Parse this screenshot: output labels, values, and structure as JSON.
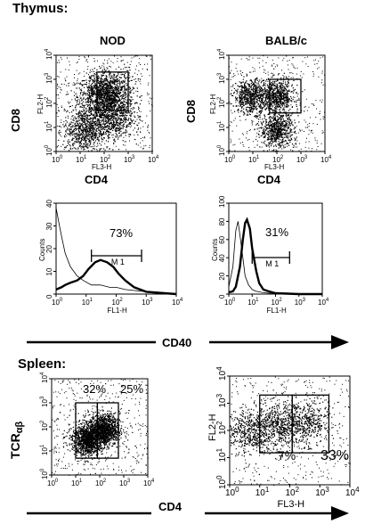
{
  "figure": {
    "thymus_title": "Thymus:",
    "spleen_title": "Spleen:",
    "column_nod": "NOD",
    "column_balbc": "BALB/c",
    "label_cd8": "CD8",
    "label_cd4": "CD4",
    "label_cd40": "CD40",
    "label_tcr_base": "TCR",
    "label_tcr_sub": "αβ",
    "axis_fl2h": "FL2-H",
    "axis_fl3h": "FL3-H",
    "axis_fl1h": "FL1-H",
    "axis_counts": "Counts",
    "gate_m1": "M 1",
    "pct_nod_cd40": "73%",
    "pct_balbc_cd40": "31%",
    "pct_spleen_nod_left": "32%",
    "pct_spleen_nod_right": "25%",
    "pct_spleen_balbc_left": "7%",
    "pct_spleen_balbc_right": "33%",
    "log_ticks": [
      "10",
      "10",
      "10",
      "10",
      "10"
    ],
    "log_exponents": [
      "0",
      "1",
      "2",
      "3",
      "4"
    ],
    "hist_left_yticks": [
      "0",
      "10",
      "20",
      "30",
      "40"
    ],
    "hist_right_yticks": [
      "0",
      "20",
      "40",
      "60",
      "80",
      "100"
    ]
  },
  "chart_data": [
    {
      "type": "scatter",
      "panel": "thymus-nod",
      "xlabel": "FL3-H",
      "ylabel": "FL2-H",
      "xlim": [
        1,
        10000
      ],
      "ylim": [
        1,
        10000
      ],
      "xscale": "log",
      "yscale": "log",
      "gate_bbox_data": [
        [
          50,
          50
        ],
        [
          1000,
          2000
        ]
      ],
      "population_centers": [
        [
          60,
          200
        ],
        [
          200,
          300
        ],
        [
          15,
          8
        ],
        [
          200,
          30
        ]
      ]
    },
    {
      "type": "scatter",
      "panel": "thymus-balbc",
      "xlabel": "FL3-H",
      "ylabel": "FL2-H",
      "xlim": [
        1,
        10000
      ],
      "ylim": [
        1,
        10000
      ],
      "xscale": "log",
      "yscale": "log",
      "gate_bbox_data": [
        [
          50,
          40
        ],
        [
          1000,
          1000
        ]
      ],
      "population_centers": [
        [
          100,
          200
        ],
        [
          8,
          200
        ],
        [
          100,
          8
        ]
      ]
    },
    {
      "type": "line",
      "panel": "thymus-nod-cd40",
      "xlabel": "FL1-H",
      "ylabel": "Counts",
      "xlim": [
        1,
        10000
      ],
      "ylim": [
        0,
        40
      ],
      "xscale": "log",
      "gate_label": "M 1",
      "gate_range": [
        15,
        700
      ],
      "gate_percent": "73%",
      "series": [
        {
          "x": [
            1,
            1.5,
            2,
            3,
            5,
            8,
            12,
            20,
            30,
            50,
            80,
            120,
            200,
            400,
            1000,
            10000
          ],
          "y": [
            2,
            3,
            4,
            5,
            6,
            8,
            11,
            14,
            15,
            14,
            12,
            9,
            6,
            3,
            1,
            0
          ]
        },
        {
          "x": [
            1,
            1.3,
            1.6,
            2,
            3,
            5,
            8,
            15,
            30,
            60,
            100,
            200,
            1000,
            10000
          ],
          "y": [
            38,
            30,
            24,
            18,
            12,
            8,
            6,
            4,
            4,
            3,
            3,
            2,
            1,
            0
          ]
        }
      ]
    },
    {
      "type": "line",
      "panel": "thymus-balbc-cd40",
      "xlabel": "FL1-H",
      "ylabel": "Counts",
      "xlim": [
        1,
        10000
      ],
      "ylim": [
        0,
        100
      ],
      "xscale": "log",
      "gate_label": "M 1",
      "gate_range": [
        10,
        400
      ],
      "gate_percent": "31%",
      "series": [
        {
          "x": [
            1,
            1.5,
            2,
            3,
            4,
            5,
            6,
            8,
            10,
            15,
            20,
            30,
            50,
            100,
            1000,
            10000
          ],
          "y": [
            2,
            3,
            8,
            30,
            60,
            78,
            82,
            72,
            50,
            25,
            12,
            5,
            3,
            1,
            0,
            0
          ]
        },
        {
          "x": [
            1,
            1.5,
            2,
            2.5,
            3,
            4,
            5,
            7,
            10,
            15,
            25,
            50,
            100,
            1000,
            10000
          ],
          "y": [
            8,
            30,
            70,
            80,
            65,
            40,
            20,
            10,
            5,
            3,
            2,
            1,
            1,
            0,
            0
          ]
        }
      ]
    },
    {
      "type": "scatter",
      "panel": "spleen-nod",
      "xlabel": "",
      "ylabel": "",
      "xlim": [
        1,
        10000
      ],
      "ylim": [
        1,
        10000
      ],
      "xscale": "log",
      "yscale": "log",
      "gates": [
        [
          [
            10,
            5
          ],
          [
            80,
            1000
          ]
        ],
        [
          [
            80,
            5
          ],
          [
            600,
            1000
          ]
        ]
      ],
      "gate_percents": [
        "32%",
        "25%"
      ],
      "population_centers": [
        [
          30,
          30
        ],
        [
          150,
          80
        ]
      ]
    },
    {
      "type": "scatter",
      "panel": "spleen-balbc",
      "xlabel": "FL3-H",
      "ylabel": "FL2-H",
      "xlim": [
        1,
        10000
      ],
      "ylim": [
        1,
        10000
      ],
      "xscale": "log",
      "yscale": "log",
      "gates": [
        [
          [
            10,
            15
          ],
          [
            120,
            2000
          ]
        ],
        [
          [
            120,
            15
          ],
          [
            2000,
            2000
          ]
        ]
      ],
      "gate_percents": [
        "7%",
        "33%"
      ],
      "population_centers": [
        [
          4,
          100
        ],
        [
          40,
          150
        ],
        [
          300,
          200
        ]
      ]
    }
  ]
}
